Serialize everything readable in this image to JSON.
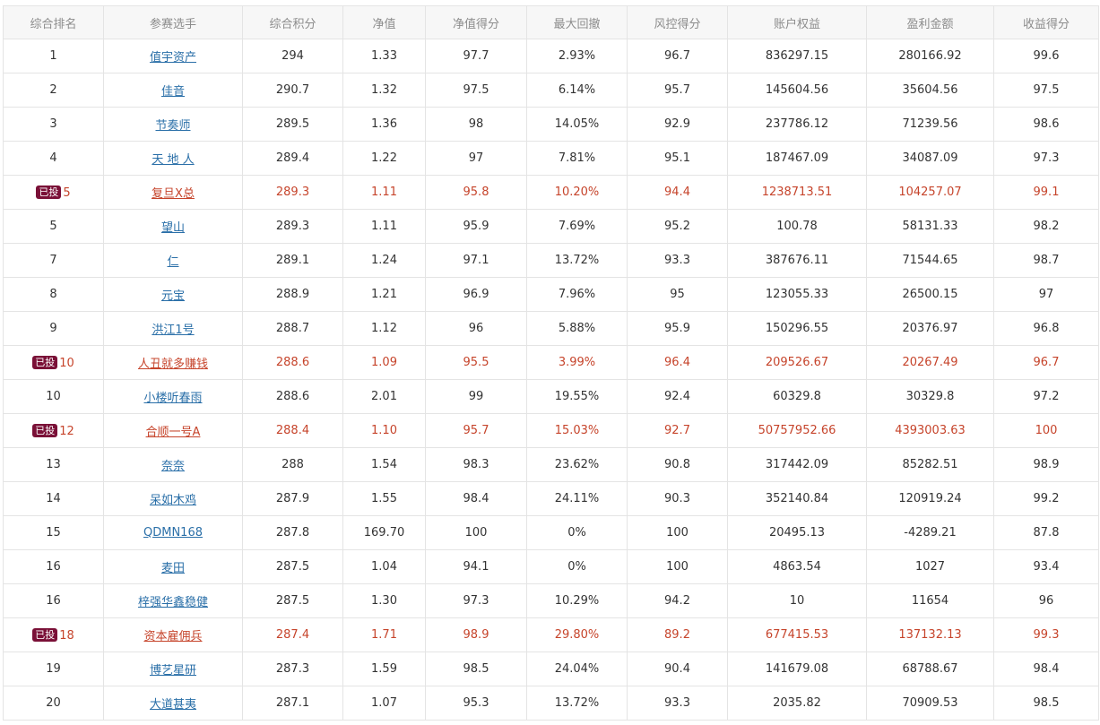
{
  "columns": [
    "综合排名",
    "参赛选手",
    "综合积分",
    "净值",
    "净值得分",
    "最大回撤",
    "风控得分",
    "账户权益",
    "盈利金额",
    "收益得分"
  ],
  "badge_label": "已投",
  "colors": {
    "highlight_text": "#c6442b",
    "link": "#2a6fa8",
    "badge_bg": "#7a1037"
  },
  "rows": [
    {
      "rank": "1",
      "name": "值宇资产",
      "score": "294",
      "nav": "1.33",
      "nav_score": "97.7",
      "max_dd": "2.93%",
      "risk_score": "96.7",
      "equity": "836297.15",
      "profit": "280166.92",
      "return_score": "99.6",
      "invested": false
    },
    {
      "rank": "2",
      "name": "佳音",
      "score": "290.7",
      "nav": "1.32",
      "nav_score": "97.5",
      "max_dd": "6.14%",
      "risk_score": "95.7",
      "equity": "145604.56",
      "profit": "35604.56",
      "return_score": "97.5",
      "invested": false
    },
    {
      "rank": "3",
      "name": "节奏师",
      "score": "289.5",
      "nav": "1.36",
      "nav_score": "98",
      "max_dd": "14.05%",
      "risk_score": "92.9",
      "equity": "237786.12",
      "profit": "71239.56",
      "return_score": "98.6",
      "invested": false
    },
    {
      "rank": "4",
      "name": "天 地 人",
      "score": "289.4",
      "nav": "1.22",
      "nav_score": "97",
      "max_dd": "7.81%",
      "risk_score": "95.1",
      "equity": "187467.09",
      "profit": "34087.09",
      "return_score": "97.3",
      "invested": false
    },
    {
      "rank": "5",
      "name": "复旦X总",
      "score": "289.3",
      "nav": "1.11",
      "nav_score": "95.8",
      "max_dd": "10.20%",
      "risk_score": "94.4",
      "equity": "1238713.51",
      "profit": "104257.07",
      "return_score": "99.1",
      "invested": true
    },
    {
      "rank": "5",
      "name": "望山",
      "score": "289.3",
      "nav": "1.11",
      "nav_score": "95.9",
      "max_dd": "7.69%",
      "risk_score": "95.2",
      "equity": "100.78",
      "profit": "58131.33",
      "return_score": "98.2",
      "invested": false
    },
    {
      "rank": "7",
      "name": "仁",
      "score": "289.1",
      "nav": "1.24",
      "nav_score": "97.1",
      "max_dd": "13.72%",
      "risk_score": "93.3",
      "equity": "387676.11",
      "profit": "71544.65",
      "return_score": "98.7",
      "invested": false
    },
    {
      "rank": "8",
      "name": "元宝",
      "score": "288.9",
      "nav": "1.21",
      "nav_score": "96.9",
      "max_dd": "7.96%",
      "risk_score": "95",
      "equity": "123055.33",
      "profit": "26500.15",
      "return_score": "97",
      "invested": false
    },
    {
      "rank": "9",
      "name": "洪江1号",
      "score": "288.7",
      "nav": "1.12",
      "nav_score": "96",
      "max_dd": "5.88%",
      "risk_score": "95.9",
      "equity": "150296.55",
      "profit": "20376.97",
      "return_score": "96.8",
      "invested": false
    },
    {
      "rank": "10",
      "name": "人丑就多赚钱",
      "score": "288.6",
      "nav": "1.09",
      "nav_score": "95.5",
      "max_dd": "3.99%",
      "risk_score": "96.4",
      "equity": "209526.67",
      "profit": "20267.49",
      "return_score": "96.7",
      "invested": true
    },
    {
      "rank": "10",
      "name": "小楼听春雨",
      "score": "288.6",
      "nav": "2.01",
      "nav_score": "99",
      "max_dd": "19.55%",
      "risk_score": "92.4",
      "equity": "60329.8",
      "profit": "30329.8",
      "return_score": "97.2",
      "invested": false
    },
    {
      "rank": "12",
      "name": "合顺一号A",
      "score": "288.4",
      "nav": "1.10",
      "nav_score": "95.7",
      "max_dd": "15.03%",
      "risk_score": "92.7",
      "equity": "50757952.66",
      "profit": "4393003.63",
      "return_score": "100",
      "invested": true
    },
    {
      "rank": "13",
      "name": "奈奈",
      "score": "288",
      "nav": "1.54",
      "nav_score": "98.3",
      "max_dd": "23.62%",
      "risk_score": "90.8",
      "equity": "317442.09",
      "profit": "85282.51",
      "return_score": "98.9",
      "invested": false
    },
    {
      "rank": "14",
      "name": "呆如木鸡",
      "score": "287.9",
      "nav": "1.55",
      "nav_score": "98.4",
      "max_dd": "24.11%",
      "risk_score": "90.3",
      "equity": "352140.84",
      "profit": "120919.24",
      "return_score": "99.2",
      "invested": false
    },
    {
      "rank": "15",
      "name": "QDMN168",
      "score": "287.8",
      "nav": "169.70",
      "nav_score": "100",
      "max_dd": "0%",
      "risk_score": "100",
      "equity": "20495.13",
      "profit": "-4289.21",
      "return_score": "87.8",
      "invested": false
    },
    {
      "rank": "16",
      "name": "麦田",
      "score": "287.5",
      "nav": "1.04",
      "nav_score": "94.1",
      "max_dd": "0%",
      "risk_score": "100",
      "equity": "4863.54",
      "profit": "1027",
      "return_score": "93.4",
      "invested": false
    },
    {
      "rank": "16",
      "name": "梓强华鑫稳健",
      "score": "287.5",
      "nav": "1.30",
      "nav_score": "97.3",
      "max_dd": "10.29%",
      "risk_score": "94.2",
      "equity": "10",
      "profit": "11654",
      "return_score": "96",
      "invested": false
    },
    {
      "rank": "18",
      "name": "资本雇佣兵",
      "score": "287.4",
      "nav": "1.71",
      "nav_score": "98.9",
      "max_dd": "29.80%",
      "risk_score": "89.2",
      "equity": "677415.53",
      "profit": "137132.13",
      "return_score": "99.3",
      "invested": true
    },
    {
      "rank": "19",
      "name": "博艺星研",
      "score": "287.3",
      "nav": "1.59",
      "nav_score": "98.5",
      "max_dd": "24.04%",
      "risk_score": "90.4",
      "equity": "141679.08",
      "profit": "68788.67",
      "return_score": "98.4",
      "invested": false
    },
    {
      "rank": "20",
      "name": "大道甚夷",
      "score": "287.1",
      "nav": "1.07",
      "nav_score": "95.3",
      "max_dd": "13.72%",
      "risk_score": "93.3",
      "equity": "2035.82",
      "profit": "70909.53",
      "return_score": "98.5",
      "invested": false
    }
  ]
}
